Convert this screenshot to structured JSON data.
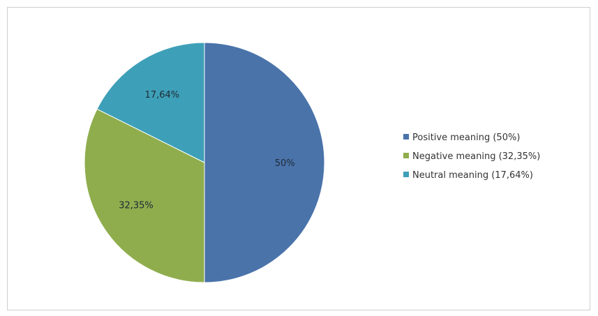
{
  "chart_data": {
    "type": "pie",
    "slices": [
      {
        "label": "Positive meaning (50%)",
        "value": 50,
        "data_label": "50%",
        "color": "#4a73aa"
      },
      {
        "label": "Negative meaning (32,35%)",
        "value": 32.35,
        "data_label": "32,35%",
        "color": "#8fad4d"
      },
      {
        "label": "Neutral meaning (17,64%)",
        "value": 17.64,
        "data_label": "17,64%",
        "color": "#3ea0b8"
      }
    ],
    "legend_position": "right"
  }
}
